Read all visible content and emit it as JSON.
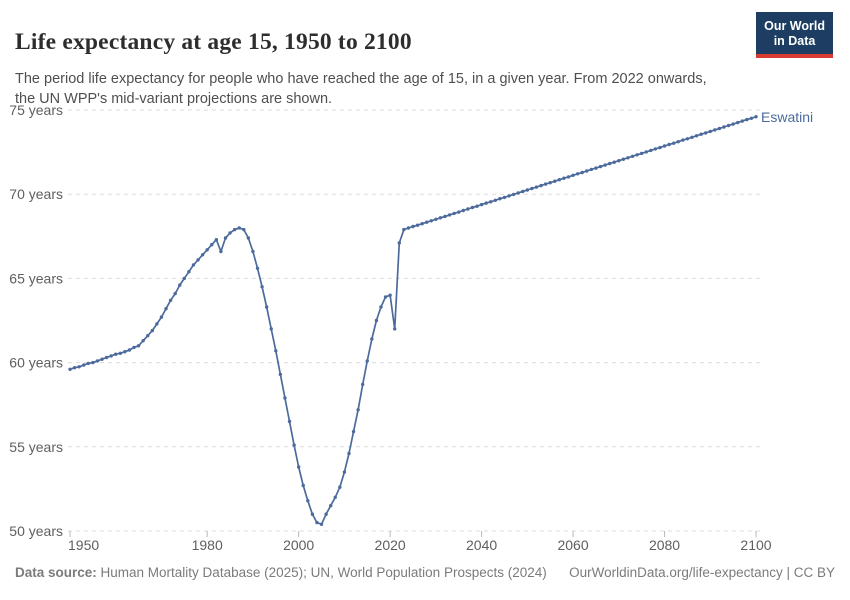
{
  "header": {
    "title": "Life expectancy at age 15, 1950 to 2100",
    "subtitle": "The period life expectancy for people who have reached the age of 15, in a given year. From 2022 onwards,\nthe UN WPP's mid-variant projections are shown.",
    "logo": {
      "line1": "Our World",
      "line2": "in Data",
      "bg": "#1d3d63",
      "accent": "#d73b32"
    }
  },
  "footer": {
    "source_label": "Data source:",
    "source_text": " Human Mortality Database (2025); UN, World Population Prospects (2024)",
    "link_text": "OurWorldinData.org/life-expectancy",
    "license_text": " | CC BY"
  },
  "colors": {
    "series_blue": "#4c6a9c",
    "gridline": "#dcdcdc",
    "axis_text": "#5f5f5f",
    "logo_navy": "#1d3d63",
    "logo_red": "#d73b32"
  },
  "chart_data": {
    "type": "line",
    "title": "Life expectancy at age 15, 1950 to 2100",
    "xlabel": "",
    "ylabel": "",
    "x_range": [
      1950,
      2100
    ],
    "y_range": [
      50,
      75
    ],
    "grid": "dashed-horizontal",
    "legend_position": "end-of-line-label",
    "x_ticks": [
      1950,
      1980,
      2000,
      2020,
      2040,
      2060,
      2080,
      2100
    ],
    "y_ticks": [
      {
        "value": 75,
        "label": "75 years"
      },
      {
        "value": 70,
        "label": "70 years"
      },
      {
        "value": 65,
        "label": "65 years"
      },
      {
        "value": 60,
        "label": "60 years"
      },
      {
        "value": 55,
        "label": "55 years"
      },
      {
        "value": 50,
        "label": "50 years"
      }
    ],
    "start_year": 1950,
    "end_year": 2100,
    "projection_note": "values from 2022 onwards are UN WPP mid-variant projections",
    "series": [
      {
        "name": "Eswatini",
        "color": "#4c6a9c",
        "values": [
          59.6,
          59.7,
          59.75,
          59.85,
          59.95,
          60.0,
          60.1,
          60.2,
          60.3,
          60.4,
          60.5,
          60.55,
          60.65,
          60.75,
          60.9,
          61.0,
          61.3,
          61.6,
          61.9,
          62.3,
          62.7,
          63.2,
          63.7,
          64.1,
          64.6,
          65.0,
          65.4,
          65.8,
          66.1,
          66.4,
          66.7,
          67.0,
          67.3,
          66.6,
          67.4,
          67.7,
          67.9,
          68.0,
          67.9,
          67.4,
          66.6,
          65.6,
          64.5,
          63.3,
          62.0,
          60.7,
          59.3,
          57.9,
          56.5,
          55.1,
          53.8,
          52.7,
          51.8,
          51.0,
          50.5,
          50.4,
          51.0,
          51.5,
          52.0,
          52.6,
          53.5,
          54.6,
          55.9,
          57.2,
          58.7,
          60.1,
          61.4,
          62.5,
          63.3,
          63.9,
          64.0,
          62.0,
          67.1,
          67.9,
          67.99,
          68.08,
          68.16,
          68.25,
          68.34,
          68.42,
          68.51,
          68.6,
          68.68,
          68.77,
          68.86,
          68.94,
          69.03,
          69.12,
          69.21,
          69.29,
          69.38,
          69.47,
          69.55,
          69.64,
          69.73,
          69.81,
          69.9,
          69.99,
          70.08,
          70.16,
          70.25,
          70.34,
          70.42,
          70.51,
          70.6,
          70.68,
          70.77,
          70.86,
          70.95,
          71.03,
          71.12,
          71.21,
          71.29,
          71.38,
          71.47,
          71.55,
          71.64,
          71.73,
          71.82,
          71.9,
          71.99,
          72.08,
          72.16,
          72.25,
          72.34,
          72.42,
          72.51,
          72.6,
          72.69,
          72.77,
          72.86,
          72.95,
          73.03,
          73.12,
          73.21,
          73.29,
          73.38,
          73.47,
          73.56,
          73.64,
          73.73,
          73.82,
          73.9,
          73.99,
          74.08,
          74.16,
          74.25,
          74.34,
          74.43,
          74.51,
          74.6
        ]
      }
    ]
  }
}
